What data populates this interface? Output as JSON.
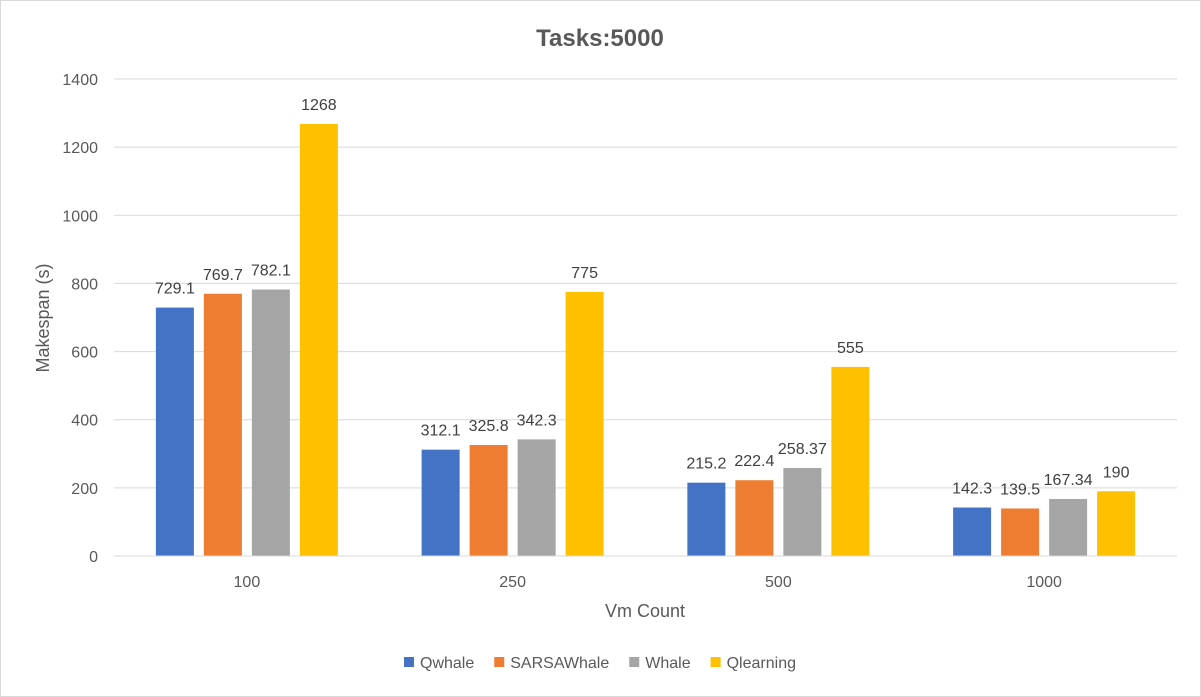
{
  "chart_data": {
    "type": "bar",
    "title": "Tasks:5000",
    "xlabel": "Vm Count",
    "ylabel": "Makespan (s)",
    "categories": [
      "100",
      "250",
      "500",
      "1000"
    ],
    "series": [
      {
        "name": "Qwhale",
        "values": [
          729.1,
          312.1,
          215.2,
          142.3
        ],
        "labels": [
          "729.1",
          "312.1",
          "215.2",
          "142.3"
        ],
        "color": "#4472C4"
      },
      {
        "name": "SARSAWhale",
        "values": [
          769.7,
          325.8,
          222.4,
          139.5
        ],
        "labels": [
          "769.7",
          "325.8",
          "222.4",
          "139.5"
        ],
        "color": "#ED7D31"
      },
      {
        "name": "Whale",
        "values": [
          782.1,
          342.3,
          258.37,
          167.34
        ],
        "labels": [
          "782.1",
          "342.3",
          "258.37",
          "167.34"
        ],
        "color": "#A5A5A5"
      },
      {
        "name": "Qlearning",
        "values": [
          1268,
          775,
          555,
          190
        ],
        "labels": [
          "1268",
          "775",
          "555",
          "190"
        ],
        "color": "#FFC000"
      }
    ],
    "ylim": [
      0,
      1400
    ],
    "yticks": [
      "0",
      "200",
      "400",
      "600",
      "800",
      "1000",
      "1200",
      "1400"
    ],
    "grid": true,
    "legend_position": "bottom"
  }
}
